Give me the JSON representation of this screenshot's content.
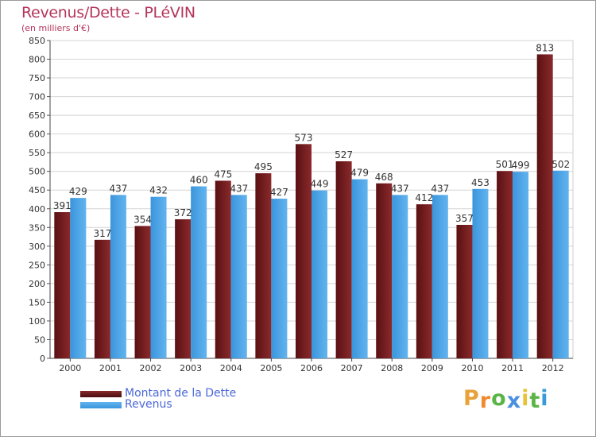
{
  "chart_data": {
    "type": "bar",
    "title": "Revenus/Dette - PLéVIN",
    "subtitle": "(en milliers d'€)",
    "categories": [
      "2000",
      "2001",
      "2002",
      "2003",
      "2004",
      "2005",
      "2006",
      "2007",
      "2008",
      "2009",
      "2010",
      "2011",
      "2012"
    ],
    "series": [
      {
        "name": "Montant de la Dette",
        "color": "#7a1c1f",
        "values": [
          391,
          317,
          354,
          372,
          475,
          495,
          573,
          527,
          468,
          412,
          357,
          501,
          813
        ]
      },
      {
        "name": "Revenus",
        "color": "#4aa3e8",
        "values": [
          429,
          437,
          432,
          460,
          437,
          427,
          449,
          479,
          437,
          437,
          453,
          499,
          502
        ]
      }
    ],
    "ylim": [
      0,
      850
    ],
    "ytick_step": 50,
    "grid": true,
    "legend": "bottom-left"
  },
  "logo": {
    "letters": [
      "P",
      "r",
      "o",
      "x",
      "i",
      "t",
      "i"
    ],
    "colors": [
      "#e8a23a",
      "#f08a2c",
      "#5ab546",
      "#4a8fe0",
      "#e8c23a",
      "#5ab546",
      "#3a9ad8"
    ]
  }
}
